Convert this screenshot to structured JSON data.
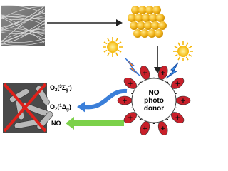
{
  "labels": {
    "triplet": {
      "element": "O",
      "count": "2",
      "open": "(",
      "multiplicity": "3",
      "term": "Σ",
      "parity": "g",
      "sign": "-",
      "close": ")"
    },
    "singlet": {
      "element": "O",
      "count": "2",
      "open": "(",
      "multiplicity": "1",
      "term": "Δ",
      "parity": "g",
      "close": ")"
    },
    "no": "NO",
    "donor": [
      "NO",
      "photo",
      "donor"
    ]
  },
  "symbols": {
    "plus": "+",
    "minus": "-"
  }
}
